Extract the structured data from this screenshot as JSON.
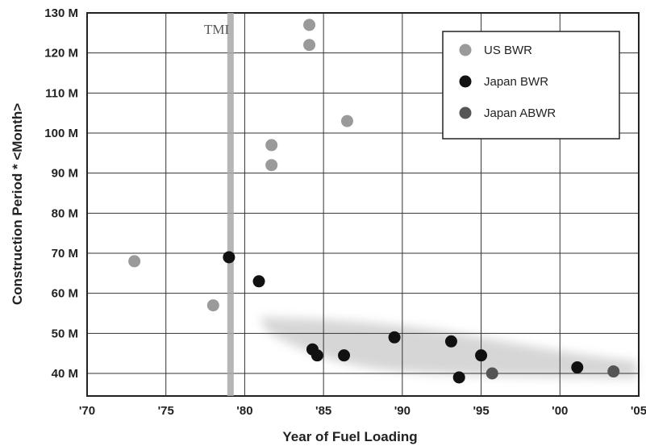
{
  "chart_data": {
    "type": "scatter",
    "xlabel": "Year of Fuel Loading",
    "ylabel": "Construction Period * <Month>",
    "x_ticks": [
      "'70",
      "'75",
      "'80",
      "'85",
      "'90",
      "'95",
      "'00",
      "'05"
    ],
    "y_ticks": [
      "130 M",
      "120 M",
      "110 M",
      "100 M",
      "90 M",
      "80 M",
      "70 M",
      "60 M",
      "50 M",
      "40 M"
    ],
    "xlim": [
      1970,
      2005
    ],
    "ylim": [
      34,
      130
    ],
    "grid": true,
    "legend_position": "top-right",
    "annotation": {
      "label": "TMI",
      "x": 1979.1
    },
    "series": [
      {
        "name": "US BWR",
        "color": "#9a9a9a",
        "points": [
          {
            "x": 1973.0,
            "y": 68
          },
          {
            "x": 1978.0,
            "y": 57
          },
          {
            "x": 1981.7,
            "y": 97
          },
          {
            "x": 1981.7,
            "y": 92
          },
          {
            "x": 1984.1,
            "y": 127
          },
          {
            "x": 1984.1,
            "y": 122
          },
          {
            "x": 1986.5,
            "y": 103
          }
        ]
      },
      {
        "name": "Japan BWR",
        "color": "#111111",
        "points": [
          {
            "x": 1979.0,
            "y": 69
          },
          {
            "x": 1980.9,
            "y": 63
          },
          {
            "x": 1984.3,
            "y": 46
          },
          {
            "x": 1984.6,
            "y": 44.5
          },
          {
            "x": 1986.3,
            "y": 44.5
          },
          {
            "x": 1989.5,
            "y": 49
          },
          {
            "x": 1993.1,
            "y": 48
          },
          {
            "x": 1993.6,
            "y": 39
          },
          {
            "x": 1995.0,
            "y": 44.5
          },
          {
            "x": 2001.1,
            "y": 41.5
          }
        ]
      },
      {
        "name": "Japan ABWR",
        "color": "#555555",
        "points": [
          {
            "x": 1995.7,
            "y": 40
          },
          {
            "x": 2003.4,
            "y": 40.5
          }
        ]
      }
    ]
  }
}
